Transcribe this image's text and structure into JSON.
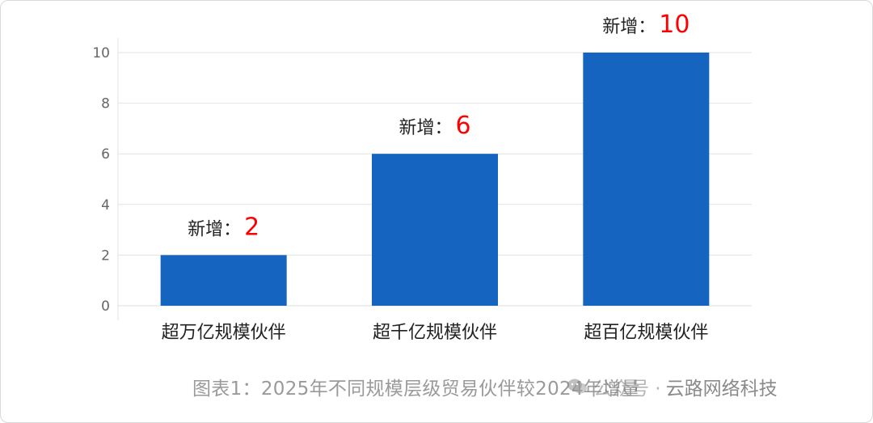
{
  "chart_data": {
    "type": "bar",
    "categories": [
      "超万亿规模伙伴",
      "超千亿规模伙伴",
      "超百亿规模伙伴"
    ],
    "values": [
      2,
      6,
      10
    ],
    "annotation_prefix": "新增：",
    "ylim": [
      0,
      10
    ],
    "yticks": [
      0,
      2,
      4,
      6,
      8,
      10
    ],
    "grid": true,
    "title": "",
    "xlabel": "",
    "ylabel": "",
    "colors": {
      "bar": "#1565c0",
      "annotation_value": "#ff0000"
    }
  },
  "caption": "图表1：2025年不同规模层级贸易伙伴较2024年增量",
  "watermark": {
    "text": "公众号 ·",
    "brand": "云路网络科技",
    "icon": "wechat-icon"
  }
}
